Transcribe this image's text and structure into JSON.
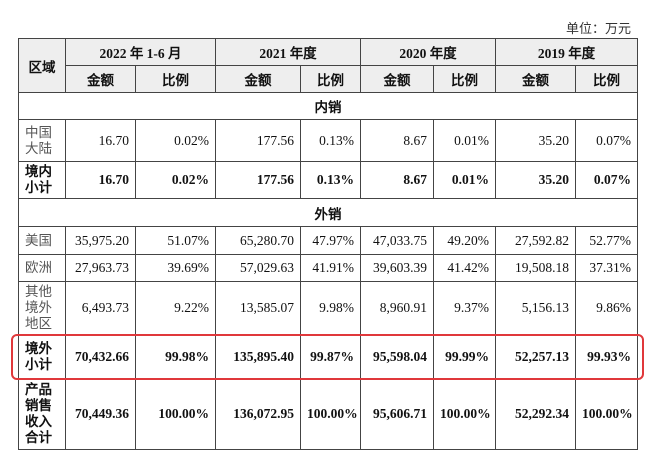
{
  "unit": "单位：万元",
  "header": {
    "region": "区域",
    "periods": [
      "2022 年 1-6 月",
      "2021 年度",
      "2020 年度",
      "2019 年度"
    ],
    "sub_headers": [
      "金额",
      "比例",
      "金额",
      "比例",
      "金额",
      "比例",
      "金额",
      "比例"
    ]
  },
  "rows": [
    {
      "section": "内销"
    },
    {
      "label": "中国大陆",
      "cells": [
        "16.70",
        "0.02%",
        "177.56",
        "0.13%",
        "8.67",
        "0.01%",
        "35.20",
        "0.07%"
      ]
    },
    {
      "label": "境内小计",
      "bold": true,
      "cells": [
        "16.70",
        "0.02%",
        "177.56",
        "0.13%",
        "8.67",
        "0.01%",
        "35.20",
        "0.07%"
      ]
    },
    {
      "section": "外销"
    },
    {
      "label": "美国",
      "cells": [
        "35,975.20",
        "51.07%",
        "65,280.70",
        "47.97%",
        "47,033.75",
        "49.20%",
        "27,592.82",
        "52.77%"
      ]
    },
    {
      "label": "欧洲",
      "cells": [
        "27,963.73",
        "39.69%",
        "57,029.63",
        "41.91%",
        "39,603.39",
        "41.42%",
        "19,508.18",
        "37.31%"
      ]
    },
    {
      "label": "其他境外地区",
      "cells": [
        "6,493.73",
        "9.22%",
        "13,585.07",
        "9.98%",
        "8,960.91",
        "9.37%",
        "5,156.13",
        "9.86%"
      ]
    },
    {
      "label": "境外小计",
      "bold": true,
      "highlighted": true,
      "cells": [
        "70,432.66",
        "99.98%",
        "135,895.40",
        "99.87%",
        "95,598.04",
        "99.99%",
        "52,257.13",
        "99.93%"
      ]
    },
    {
      "label": "产品销售收入合计",
      "bold": true,
      "cells": [
        "70,449.36",
        "100.00%",
        "136,072.95",
        "100.00%",
        "95,606.71",
        "100.00%",
        "52,292.34",
        "100.00%"
      ]
    }
  ]
}
